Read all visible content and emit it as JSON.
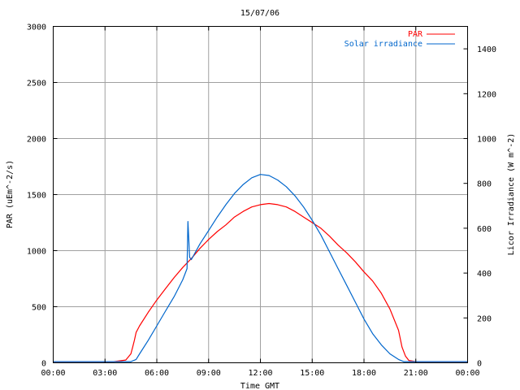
{
  "chart_data": {
    "type": "line",
    "title": "15/07/06",
    "xlabel": "Time GMT",
    "ylabel": "PAR (uEm^-2/s)",
    "y2label": "Licor Irradiance (W m^-2)",
    "xlim": [
      0,
      24
    ],
    "ylim": [
      0,
      3000
    ],
    "y2lim": [
      0,
      1500
    ],
    "x_ticks": [
      "00:00",
      "03:00",
      "06:00",
      "09:00",
      "12:00",
      "15:00",
      "18:00",
      "21:00",
      "00:00"
    ],
    "y_ticks": [
      "0",
      "500",
      "1000",
      "1500",
      "2000",
      "2500",
      "3000"
    ],
    "y2_ticks": [
      "0",
      "200",
      "400",
      "600",
      "800",
      "1000",
      "1200",
      "1400"
    ],
    "grid": true,
    "legend_position": "top-right",
    "series": [
      {
        "name": "PAR",
        "axis": "left",
        "color": "#ff0000",
        "x": [
          0,
          3.5,
          4.2,
          4.5,
          4.6,
          4.7,
          4.8,
          5.0,
          5.5,
          6.0,
          6.5,
          7.0,
          7.5,
          8.0,
          8.5,
          9.0,
          9.5,
          10.0,
          10.5,
          11.0,
          11.5,
          12.0,
          12.5,
          13.0,
          13.5,
          14.0,
          14.5,
          15.0,
          15.5,
          16.0,
          16.5,
          17.0,
          17.5,
          18.0,
          18.5,
          19.0,
          19.5,
          20.0,
          20.2,
          20.4,
          20.6,
          21.0,
          24.0
        ],
        "y": [
          10,
          10,
          25,
          80,
          140,
          200,
          270,
          330,
          450,
          560,
          660,
          760,
          850,
          930,
          1020,
          1100,
          1170,
          1230,
          1300,
          1350,
          1390,
          1410,
          1420,
          1410,
          1390,
          1350,
          1300,
          1250,
          1200,
          1130,
          1050,
          980,
          900,
          810,
          730,
          620,
          480,
          290,
          140,
          60,
          20,
          10,
          10
        ]
      },
      {
        "name": "Solar irradiance",
        "axis": "right",
        "color": "#0066cc",
        "x": [
          0,
          3.5,
          4.5,
          4.8,
          5.0,
          5.5,
          6.0,
          6.5,
          7.0,
          7.5,
          7.75,
          7.8,
          7.9,
          8.0,
          8.5,
          9.0,
          9.5,
          10.0,
          10.5,
          11.0,
          11.5,
          12.0,
          12.5,
          13.0,
          13.5,
          14.0,
          14.5,
          15.0,
          15.5,
          16.0,
          16.5,
          17.0,
          17.5,
          18.0,
          18.5,
          19.0,
          19.5,
          20.0,
          20.3,
          20.5,
          21.0,
          24.0
        ],
        "y": [
          5,
          5,
          5,
          15,
          40,
          100,
          165,
          230,
          295,
          370,
          420,
          630,
          470,
          460,
          530,
          590,
          650,
          705,
          755,
          795,
          825,
          840,
          835,
          815,
          785,
          745,
          695,
          635,
          570,
          495,
          420,
          345,
          270,
          195,
          130,
          80,
          40,
          15,
          5,
          5,
          5,
          5
        ]
      }
    ]
  }
}
